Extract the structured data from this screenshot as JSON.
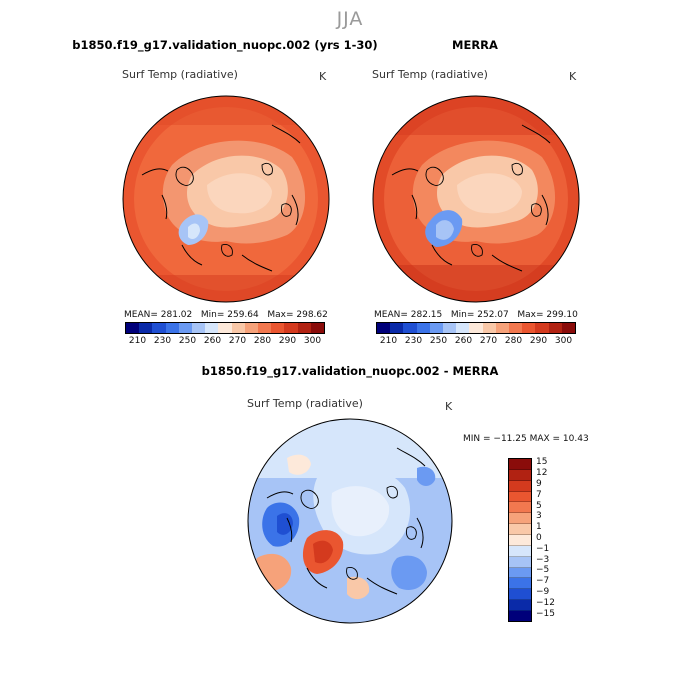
{
  "suptitle": "JJA",
  "panels": {
    "model": {
      "title": "b1850.f19_g17.validation_nuopc.002 (yrs 1-30)",
      "var_label": "Surf Temp (radiative)",
      "units": "K",
      "stats": {
        "mean_label": "MEAN=",
        "mean": "281.02",
        "min_label": "Min=",
        "min": "259.64",
        "max_label": "Max=",
        "max": "298.62"
      }
    },
    "obs": {
      "title": "MERRA",
      "var_label": "Surf Temp (radiative)",
      "units": "K",
      "stats": {
        "mean_label": "MEAN=",
        "mean": "282.15",
        "min_label": "Min=",
        "min": "252.07",
        "max_label": "Max=",
        "max": "299.10"
      }
    },
    "diff": {
      "title": "b1850.f19_g17.validation_nuopc.002 - MERRA",
      "var_label": "Surf Temp (radiative)",
      "units": "K",
      "minmax": "MIN = −11.25 MAX =  10.43"
    }
  },
  "abs_colorbar": {
    "ticks": [
      "210",
      "230",
      "250",
      "260",
      "270",
      "280",
      "290",
      "300"
    ],
    "colors": [
      "#00007a",
      "#0a2aa8",
      "#1f4fd2",
      "#3b73e8",
      "#6b9af2",
      "#a7c4f6",
      "#d6e6fb",
      "#fde9da",
      "#f9c8a8",
      "#f6a27a",
      "#f2784f",
      "#ea5630",
      "#d43a1e",
      "#b12212",
      "#8a0c0a"
    ]
  },
  "diff_colorbar": {
    "ticks": [
      "15",
      "12",
      "9",
      "7",
      "5",
      "3",
      "1",
      "0",
      "−1",
      "−3",
      "−5",
      "−7",
      "−9",
      "−12",
      "−15"
    ],
    "colors": [
      "#8a0c0a",
      "#b12212",
      "#d43a1e",
      "#ea5630",
      "#f2784f",
      "#f6a27a",
      "#f9c8a8",
      "#fde9da",
      "#d6e6fb",
      "#a7c4f6",
      "#6b9af2",
      "#3b73e8",
      "#1f4fd2",
      "#0a2aa8",
      "#00007a"
    ]
  }
}
